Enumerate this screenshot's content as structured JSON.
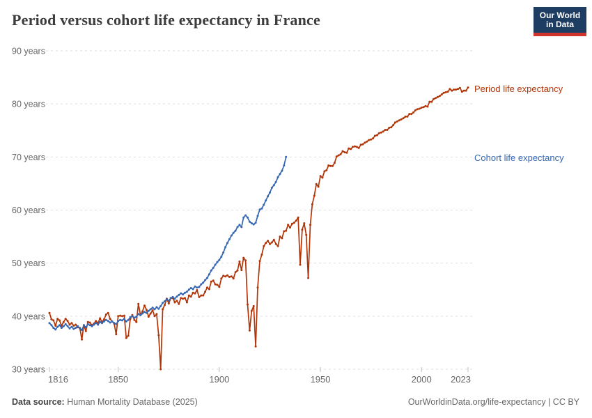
{
  "header": {
    "title": "Period versus cohort life expectancy in France",
    "logo": {
      "line1": "Our World",
      "line2": "in Data"
    }
  },
  "footer": {
    "source_label": "Data source:",
    "source_value": " Human Mortality Database (2025)",
    "link": "OurWorldinData.org/life-expectancy | CC BY"
  },
  "colors": {
    "period": "#b13507",
    "cohort": "#3566b2",
    "grid": "#dddddd",
    "tick_text": "#666666",
    "logo_bg": "#1d3d63",
    "logo_bar": "#d0342c"
  },
  "chart_data": {
    "type": "line",
    "title": "Period versus cohort life expectancy in France",
    "xlabel": "",
    "ylabel": "",
    "grid": "dashed-horizontal",
    "legend_position": "right-margin-at-line-end",
    "x_axis": {
      "min": 1816,
      "max": 2023,
      "ticks": [
        1816,
        1850,
        1900,
        1950,
        2000,
        2023
      ]
    },
    "y_axis": {
      "min": 30,
      "max": 90,
      "ticks": [
        {
          "value": 30,
          "label": "30 years"
        },
        {
          "value": 40,
          "label": "40 years"
        },
        {
          "value": 50,
          "label": "50 years"
        },
        {
          "value": 60,
          "label": "60 years"
        },
        {
          "value": 70,
          "label": "70 years"
        },
        {
          "value": 80,
          "label": "80 years"
        },
        {
          "value": 90,
          "label": "90 years"
        }
      ]
    },
    "series": [
      {
        "name": "Period life expectancy",
        "color": "#b13507",
        "start_year": 1816,
        "values": [
          40.6,
          39.4,
          39.2,
          38.2,
          39.5,
          39.2,
          38.2,
          38.9,
          39.5,
          39.1,
          38.4,
          38.7,
          38.2,
          38.4,
          37.9,
          37.8,
          35.6,
          38.3,
          37.2,
          38.9,
          38.8,
          38.3,
          38.6,
          39.1,
          38.7,
          39.6,
          38.9,
          39.4,
          40.3,
          40.6,
          39.5,
          39.0,
          38.6,
          36.6,
          40.0,
          40.1,
          40.0,
          40.1,
          35.9,
          36.3,
          39.5,
          40.2,
          39.3,
          38.9,
          42.3,
          40.2,
          40.9,
          42.0,
          41.2,
          39.9,
          40.5,
          41.1,
          40.0,
          40.4,
          36.4,
          30.0,
          41.3,
          42.1,
          43.3,
          42.4,
          43.4,
          43.4,
          42.6,
          42.9,
          42.3,
          43.4,
          43.3,
          43.4,
          42.6,
          43.9,
          43.7,
          44.4,
          44.3,
          44.9,
          43.6,
          43.9,
          43.9,
          44.6,
          45.4,
          45.1,
          46.5,
          46.7,
          46.0,
          45.9,
          45.5,
          47.1,
          47.6,
          47.5,
          47.7,
          47.4,
          47.5,
          47.1,
          48.3,
          48.6,
          50.3,
          48.7,
          51.0,
          50.5,
          42.2,
          37.3,
          41.0,
          41.9,
          34.3,
          45.4,
          50.4,
          51.6,
          53.2,
          53.8,
          54.2,
          53.6,
          53.9,
          54.4,
          53.6,
          53.2,
          55.0,
          54.7,
          56.0,
          56.1,
          57.2,
          56.7,
          57.4,
          57.6,
          58.0,
          58.6,
          49.7,
          56.3,
          57.5,
          55.3,
          47.2,
          57.2,
          61.1,
          62.7,
          64.9,
          64.4,
          66.4,
          66.1,
          67.3,
          67.5,
          68.4,
          68.3,
          68.3,
          68.9,
          70.1,
          70.3,
          70.5,
          71.1,
          70.9,
          70.8,
          71.6,
          71.5,
          71.9,
          72.0,
          71.9,
          71.7,
          72.3,
          72.4,
          72.7,
          72.9,
          73.2,
          73.3,
          73.5,
          74.0,
          74.1,
          74.5,
          74.6,
          74.8,
          75.1,
          75.1,
          75.5,
          75.6,
          76.0,
          76.5,
          76.7,
          76.9,
          77.1,
          77.3,
          77.6,
          77.6,
          78.1,
          78.1,
          78.4,
          78.8,
          79.0,
          79.1,
          79.3,
          79.4,
          79.6,
          79.5,
          80.4,
          80.4,
          80.9,
          81.1,
          81.3,
          81.5,
          81.8,
          82.1,
          82.2,
          82.3,
          82.8,
          82.5,
          82.7,
          82.7,
          82.8,
          83.0,
          82.3,
          82.5,
          82.5,
          83.1
        ]
      },
      {
        "name": "Cohort life expectancy",
        "color": "#3566b2",
        "start_year": 1816,
        "values": [
          38.7,
          38.3,
          37.8,
          37.5,
          38.0,
          38.3,
          37.8,
          38.1,
          38.5,
          38.1,
          37.7,
          38.0,
          37.6,
          37.8,
          38.1,
          37.7,
          37.4,
          38.3,
          37.9,
          38.5,
          38.3,
          38.1,
          38.4,
          38.7,
          38.4,
          38.9,
          38.7,
          39.0,
          39.3,
          39.1,
          38.8,
          39.0,
          38.7,
          38.5,
          39.1,
          39.3,
          39.2,
          39.5,
          39.0,
          39.3,
          39.8,
          40.0,
          39.7,
          39.9,
          40.4,
          40.2,
          40.5,
          40.8,
          40.6,
          41.0,
          41.3,
          41.6,
          41.3,
          41.7,
          41.4,
          41.9,
          42.5,
          42.8,
          43.2,
          42.9,
          43.4,
          43.6,
          43.3,
          43.7,
          44.0,
          44.3,
          44.1,
          44.4,
          44.6,
          45.0,
          45.3,
          45.1,
          45.6,
          45.4,
          45.5,
          46.0,
          46.3,
          46.8,
          47.2,
          47.9,
          48.6,
          49.1,
          49.7,
          50.2,
          50.6,
          51.2,
          52.0,
          53.0,
          53.8,
          54.5,
          55.2,
          55.7,
          56.1,
          56.8,
          57.2,
          56.8,
          58.6,
          59.0,
          58.6,
          57.8,
          57.5,
          57.3,
          57.6,
          58.9,
          60.1,
          60.3,
          61.0,
          61.8,
          62.6,
          63.3,
          64.2,
          64.7,
          65.3,
          66.2,
          66.8,
          67.4,
          68.4,
          70.0
        ]
      }
    ]
  }
}
